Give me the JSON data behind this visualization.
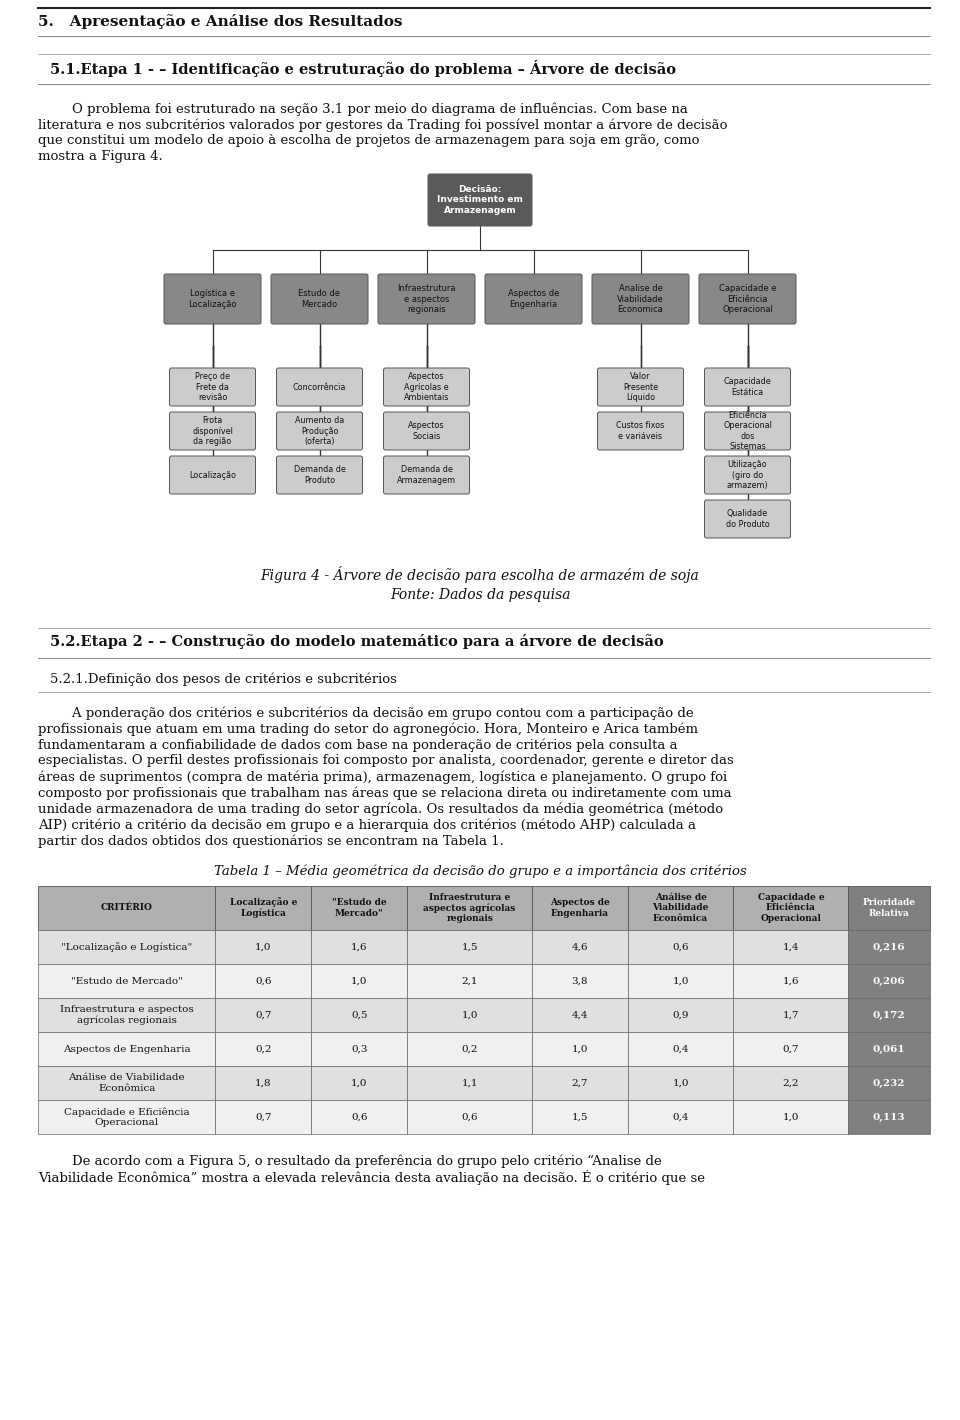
{
  "page_bg": "#ffffff",
  "section_title": "5.   Apresentação e Análise dos Resultados",
  "subsection_title": "5.1.Etapa 1 - – Identificação e estruturação do problema – Árvore de decisão",
  "paragraph1_lines": [
    "        O problema foi estruturado na seção 3.1 por meio do diagrama de influências. Com base na",
    "literatura e nos subcritérios valorados por gestores da Trading foi possível montar a árvore de decisão",
    "que constitui um modelo de apoio à escolha de projetos de armazenagem para soja em grão, como",
    "mostra a Figura 4."
  ],
  "figure_caption": "Figura 4 - Árvore de decisão para escolha de armazém de soja",
  "figure_source": "Fonte: Dados da pesquisa",
  "subsection2_title": "5.2.Etapa 2 - – Construção do modelo matemático para a árvore de decisão",
  "subsection2_sub": "5.2.1.Definição dos pesos de critérios e subcritérios",
  "paragraph2_lines": [
    "        A ponderação dos critérios e subcritérios da decisão em grupo contou com a participação de",
    "profissionais que atuam em uma trading do setor do agronegócio. Hora, Monteiro e Arica também",
    "fundamentaram a confiabilidade de dados com base na ponderação de critérios pela consulta a",
    "especialistas. O perfil destes profissionais foi composto por analista, coordenador, gerente e diretor das",
    "áreas de suprimentos (compra de matéria prima), armazenagem, logística e planejamento. O grupo foi",
    "composto por profissionais que trabalham nas áreas que se relaciona direta ou indiretamente com uma",
    "unidade armazenadora de uma trading do setor agrícola. Os resultados da média geométrica (método",
    "AIP) critério a critério da decisão em grupo e a hierarquia dos critérios (método AHP) calculada a",
    "partir dos dados obtidos dos questionários se encontram na Tabela 1."
  ],
  "table_title": "Tabela 1 – Média geométrica da decisão do grupo e a importância dos critérios",
  "table_headers": [
    "CRITÉRIO",
    "Localização e\nLogística",
    "\"Estudo de\nMercado\"",
    "Infraestrutura e\naspectos agrícolas\nregionais",
    "Aspectos de\nEngenharia",
    "Análise de\nViabilidade\nEconômica",
    "Capacidade e\nEficiência\nOperacional",
    "Prioridade\nRelativa"
  ],
  "table_rows": [
    [
      "\"Localização e Logística\"",
      "1,0",
      "1,6",
      "1,5",
      "4,6",
      "0,6",
      "1,4",
      "0,216"
    ],
    [
      "\"Estudo de Mercado\"",
      "0,6",
      "1,0",
      "2,1",
      "3,8",
      "1,0",
      "1,6",
      "0,206"
    ],
    [
      "Infraestrutura e aspectos\nagrícolas regionais",
      "0,7",
      "0,5",
      "1,0",
      "4,4",
      "0,9",
      "1,7",
      "0,172"
    ],
    [
      "Aspectos de Engenharia",
      "0,2",
      "0,3",
      "0,2",
      "1,0",
      "0,4",
      "0,7",
      "0,061"
    ],
    [
      "Análise de Viabilidade\nEconômica",
      "1,8",
      "1,0",
      "1,1",
      "2,7",
      "1,0",
      "2,2",
      "0,232"
    ],
    [
      "Capacidade e Eficiência\nOperacional",
      "0,7",
      "0,6",
      "0,6",
      "1,5",
      "0,4",
      "1,0",
      "0,113"
    ]
  ],
  "paragraph3_lines": [
    "        De acordo com a Figura 5, o resultado da preferência do grupo pelo critério “Analise de",
    "Viabilidade Econômica” mostra a elevada relevância desta avaliação na decisão. É o critério que se"
  ],
  "header_bg": "#b0b0b0",
  "row_alt_bg": "#e0e0e0",
  "row_bg": "#f0f0f0",
  "last_col_bg": "#808080",
  "last_col_text": "#ffffff",
  "tree_root_bg": "#5a5a5a",
  "tree_root_text": "#ffffff",
  "tree_node_bg": "#888888",
  "tree_node_text": "#111111",
  "tree_leaf_bg": "#cccccc",
  "tree_leaf_text": "#111111",
  "line_color": "#333333"
}
